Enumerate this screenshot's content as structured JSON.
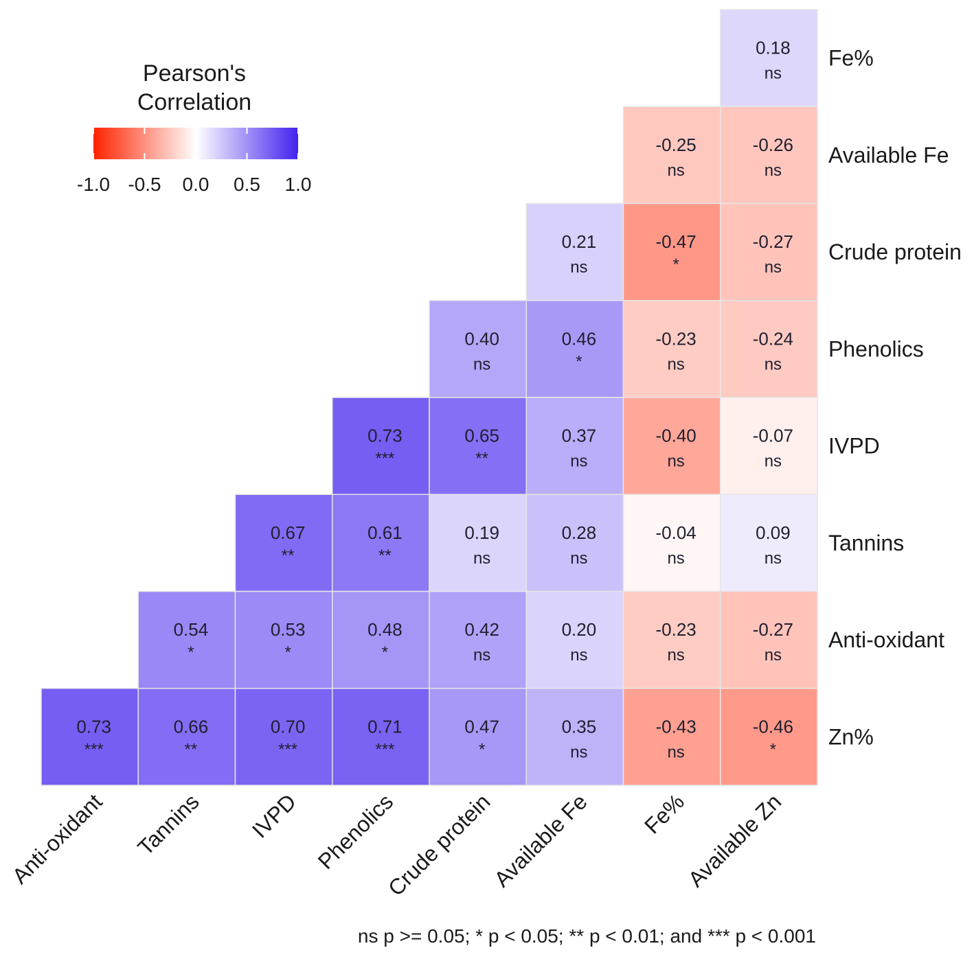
{
  "chart_data": {
    "type": "heatmap",
    "title": "",
    "legend": {
      "title_lines": [
        "Pearson's",
        "Correlation"
      ],
      "ticks": [
        "-1.0",
        "-0.5",
        "0.0",
        "0.5",
        "1.0"
      ],
      "tick_values": [
        -1.0,
        -0.5,
        0.0,
        0.5,
        1.0
      ],
      "range": [
        -1.0,
        1.0
      ],
      "placement": "top-left"
    },
    "colors": {
      "low": "#ff2200",
      "mid": "#ffffff",
      "high": "#4422ee",
      "grid": "#e6e6e6"
    },
    "columns": [
      "Anti-oxidant",
      "Tannins",
      "IVPD",
      "Phenolics",
      "Crude protein",
      "Available Fe",
      "Fe%",
      "Available Zn"
    ],
    "rows": [
      "Fe%",
      "Available Fe",
      "Crude protein",
      "Phenolics",
      "IVPD",
      "Tannins",
      "Anti-oxidant",
      "Zn%"
    ],
    "cells": [
      {
        "row": 0,
        "col": 7,
        "value": 0.18,
        "label": "0.18",
        "sig": "ns"
      },
      {
        "row": 1,
        "col": 6,
        "value": -0.25,
        "label": "-0.25",
        "sig": "ns"
      },
      {
        "row": 1,
        "col": 7,
        "value": -0.26,
        "label": "-0.26",
        "sig": "ns"
      },
      {
        "row": 2,
        "col": 5,
        "value": 0.21,
        "label": "0.21",
        "sig": "ns"
      },
      {
        "row": 2,
        "col": 6,
        "value": -0.47,
        "label": "-0.47",
        "sig": "*"
      },
      {
        "row": 2,
        "col": 7,
        "value": -0.27,
        "label": "-0.27",
        "sig": "ns"
      },
      {
        "row": 3,
        "col": 4,
        "value": 0.4,
        "label": "0.40",
        "sig": "ns"
      },
      {
        "row": 3,
        "col": 5,
        "value": 0.46,
        "label": "0.46",
        "sig": "*"
      },
      {
        "row": 3,
        "col": 6,
        "value": -0.23,
        "label": "-0.23",
        "sig": "ns"
      },
      {
        "row": 3,
        "col": 7,
        "value": -0.24,
        "label": "-0.24",
        "sig": "ns"
      },
      {
        "row": 4,
        "col": 3,
        "value": 0.73,
        "label": "0.73",
        "sig": "***"
      },
      {
        "row": 4,
        "col": 4,
        "value": 0.65,
        "label": "0.65",
        "sig": "**"
      },
      {
        "row": 4,
        "col": 5,
        "value": 0.37,
        "label": "0.37",
        "sig": "ns"
      },
      {
        "row": 4,
        "col": 6,
        "value": -0.4,
        "label": "-0.40",
        "sig": "ns"
      },
      {
        "row": 4,
        "col": 7,
        "value": -0.07,
        "label": "-0.07",
        "sig": "ns"
      },
      {
        "row": 5,
        "col": 2,
        "value": 0.67,
        "label": "0.67",
        "sig": "**"
      },
      {
        "row": 5,
        "col": 3,
        "value": 0.61,
        "label": "0.61",
        "sig": "**"
      },
      {
        "row": 5,
        "col": 4,
        "value": 0.19,
        "label": "0.19",
        "sig": "ns"
      },
      {
        "row": 5,
        "col": 5,
        "value": 0.28,
        "label": "0.28",
        "sig": "ns"
      },
      {
        "row": 5,
        "col": 6,
        "value": -0.04,
        "label": "-0.04",
        "sig": "ns"
      },
      {
        "row": 5,
        "col": 7,
        "value": 0.09,
        "label": "0.09",
        "sig": "ns"
      },
      {
        "row": 6,
        "col": 1,
        "value": 0.54,
        "label": "0.54",
        "sig": "*"
      },
      {
        "row": 6,
        "col": 2,
        "value": 0.53,
        "label": "0.53",
        "sig": "*"
      },
      {
        "row": 6,
        "col": 3,
        "value": 0.48,
        "label": "0.48",
        "sig": "*"
      },
      {
        "row": 6,
        "col": 4,
        "value": 0.42,
        "label": "0.42",
        "sig": "ns"
      },
      {
        "row": 6,
        "col": 5,
        "value": 0.2,
        "label": "0.20",
        "sig": "ns"
      },
      {
        "row": 6,
        "col": 6,
        "value": -0.23,
        "label": "-0.23",
        "sig": "ns"
      },
      {
        "row": 6,
        "col": 7,
        "value": -0.27,
        "label": "-0.27",
        "sig": "ns"
      },
      {
        "row": 7,
        "col": 0,
        "value": 0.73,
        "label": "0.73",
        "sig": "***"
      },
      {
        "row": 7,
        "col": 1,
        "value": 0.66,
        "label": "0.66",
        "sig": "**"
      },
      {
        "row": 7,
        "col": 2,
        "value": 0.7,
        "label": "0.70",
        "sig": "***"
      },
      {
        "row": 7,
        "col": 3,
        "value": 0.71,
        "label": "0.71",
        "sig": "***"
      },
      {
        "row": 7,
        "col": 4,
        "value": 0.47,
        "label": "0.47",
        "sig": "*"
      },
      {
        "row": 7,
        "col": 5,
        "value": 0.35,
        "label": "0.35",
        "sig": "ns"
      },
      {
        "row": 7,
        "col": 6,
        "value": -0.43,
        "label": "-0.43",
        "sig": "ns"
      },
      {
        "row": 7,
        "col": 7,
        "value": -0.46,
        "label": "-0.46",
        "sig": "*"
      }
    ],
    "footnote": "ns p >= 0.05; * p < 0.05; ** p < 0.01; and *** p < 0.001"
  }
}
